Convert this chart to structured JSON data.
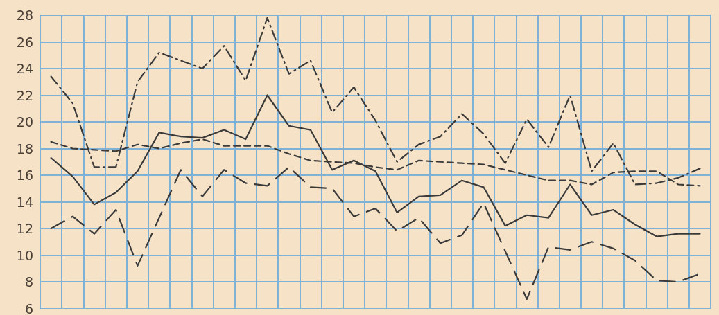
{
  "chart_data": {
    "type": "line",
    "categories": [
      null,
      null,
      null,
      null,
      null,
      null,
      null,
      null,
      null,
      null,
      null,
      null,
      null,
      null,
      null,
      null,
      null,
      null,
      null,
      null,
      null,
      null,
      null,
      null,
      null,
      null,
      null,
      null,
      null,
      null,
      null
    ],
    "series": [
      {
        "color": "#3a3a3a",
        "line_style": "dashdot",
        "values": [
          23.4,
          21.4,
          16.6,
          16.6,
          23.0,
          25.2,
          24.6,
          24.0,
          25.7,
          23.1,
          27.8,
          23.6,
          24.6,
          20.7,
          22.6,
          20.1,
          17.0,
          18.3,
          18.9,
          20.6,
          19.1,
          16.9,
          20.2,
          18.1,
          22.0,
          16.3,
          18.4,
          15.3,
          15.4,
          15.8,
          16.5
        ]
      },
      {
        "color": "#3a3a3a",
        "line_style": "solid",
        "values": [
          17.3,
          15.9,
          13.8,
          14.7,
          16.3,
          19.2,
          18.9,
          18.8,
          19.4,
          18.7,
          22.0,
          19.7,
          19.4,
          16.4,
          17.1,
          16.3,
          13.2,
          14.4,
          14.5,
          15.6,
          15.1,
          12.2,
          13.0,
          12.8,
          15.3,
          13.0,
          13.4,
          12.3,
          11.4,
          11.6,
          11.6
        ]
      },
      {
        "color": "#3a3a3a",
        "line_style": "dashed",
        "values": [
          18.5,
          18.0,
          17.9,
          17.8,
          18.3,
          18.0,
          18.4,
          18.7,
          18.2,
          18.2,
          18.2,
          17.6,
          17.1,
          17.0,
          16.9,
          16.6,
          16.4,
          17.1,
          17.0,
          16.9,
          16.8,
          16.4,
          16.0,
          15.6,
          15.6,
          15.3,
          16.2,
          16.3,
          16.3,
          15.3,
          15.2
        ]
      },
      {
        "color": "#3a3a3a",
        "line_style": "longdash",
        "values": [
          12.0,
          12.9,
          11.6,
          13.4,
          9.2,
          12.8,
          16.4,
          14.4,
          16.4,
          15.4,
          15.2,
          16.6,
          15.1,
          15.0,
          12.9,
          13.5,
          11.8,
          12.8,
          10.9,
          11.5,
          13.9,
          10.3,
          6.7,
          10.6,
          10.4,
          11.0,
          10.5,
          9.6,
          8.1,
          8.0,
          8.6
        ]
      }
    ],
    "ylim": [
      6,
      28
    ],
    "yticks": [
      6,
      8,
      10,
      12,
      14,
      16,
      18,
      20,
      22,
      24,
      26,
      28
    ],
    "grid": true,
    "marker": "none",
    "tick_labels": "y"
  }
}
